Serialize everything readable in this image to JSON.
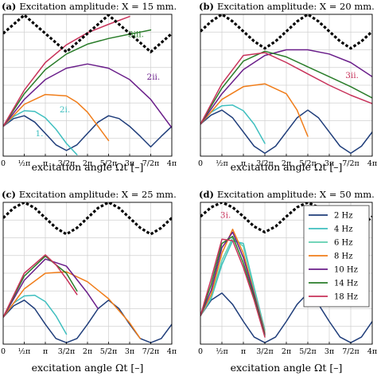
{
  "chart_data": [
    {
      "type": "line",
      "panel": "(a)",
      "title": "Excitation amplitude: X = 15 mm.",
      "xlabel": "excitation angle Ωt [–]",
      "xlim": [
        0,
        12.566
      ],
      "ylim": [
        -1.0,
        1.0
      ],
      "x_ticks": [
        "0",
        "½π",
        "π",
        "3/2π",
        "2π",
        "5/2π",
        "3π",
        "7/2π",
        "4π"
      ],
      "grid": true,
      "annotations": [
        {
          "text": "3iii.",
          "color": "#2a7d2a",
          "x": 9.3,
          "y": 0.68
        },
        {
          "text": "2ii.",
          "color": "#6a1e8a",
          "x": 10.7,
          "y": 0.08
        },
        {
          "text": "2i.",
          "color": "#3fbfbf",
          "x": 4.2,
          "y": -0.38
        },
        {
          "text": "1.",
          "color": "#3fbfbf",
          "x": 2.4,
          "y": -0.72
        }
      ],
      "series": [
        {
          "name": "2 Hz",
          "color": "#1f3d7a",
          "x": [
            0,
            0.785,
            1.571,
            2.356,
            3.142,
            3.927,
            4.712,
            5.498,
            6.283,
            7.069,
            7.854,
            8.639,
            9.425,
            10.21,
            10.996,
            11.781,
            12.566
          ],
          "y": [
            -0.58,
            -0.47,
            -0.43,
            -0.52,
            -0.68,
            -0.84,
            -0.92,
            -0.84,
            -0.68,
            -0.52,
            -0.43,
            -0.47,
            -0.58,
            -0.72,
            -0.87,
            -0.72,
            -0.58
          ]
        },
        {
          "name": "4 Hz",
          "color": "#3fbfbf",
          "x": [
            0,
            0.785,
            1.571,
            2.356,
            3.142,
            3.927,
            4.712,
            5.498
          ],
          "y": [
            -0.58,
            -0.44,
            -0.36,
            -0.37,
            -0.46,
            -0.62,
            -0.82,
            -0.98
          ]
        },
        {
          "name": "8 Hz",
          "color": "#f07d1a",
          "x": [
            0,
            1.571,
            3.142,
            4.712,
            5.498,
            6.283,
            7.069,
            7.854
          ],
          "y": [
            -0.58,
            -0.27,
            -0.13,
            -0.15,
            -0.24,
            -0.38,
            -0.58,
            -0.78
          ]
        },
        {
          "name": "10 Hz",
          "color": "#6a1e8a",
          "x": [
            0,
            1.571,
            3.142,
            4.712,
            6.283,
            7.854,
            9.425,
            10.996,
            12.566
          ],
          "y": [
            -0.58,
            -0.2,
            0.08,
            0.24,
            0.3,
            0.24,
            0.08,
            -0.2,
            -0.6
          ]
        },
        {
          "name": "14 Hz",
          "color": "#2a7d2a",
          "x": [
            0,
            1.571,
            3.142,
            4.712,
            6.283,
            7.854,
            9.425,
            10.21,
            10.996
          ],
          "y": [
            -0.58,
            -0.12,
            0.22,
            0.44,
            0.58,
            0.66,
            0.72,
            0.75,
            0.78
          ]
        },
        {
          "name": "18 Hz",
          "color": "#c8325a",
          "x": [
            0,
            1.571,
            3.142,
            4.712,
            6.283,
            7.854,
            9.425
          ],
          "y": [
            -0.58,
            -0.07,
            0.32,
            0.57,
            0.74,
            0.86,
            0.97
          ]
        },
        {
          "name": "",
          "color": "#000000",
          "dashed": true,
          "x": [
            0,
            0.785,
            1.571,
            2.356,
            3.142,
            3.927,
            4.712,
            5.498,
            6.283,
            7.069,
            7.854,
            8.639,
            9.425,
            10.21,
            10.996,
            11.781,
            12.566
          ],
          "y": [
            0.73,
            0.86,
            0.99,
            0.86,
            0.73,
            0.6,
            0.47,
            0.6,
            0.73,
            0.86,
            0.99,
            0.86,
            0.73,
            0.6,
            0.47,
            0.6,
            0.73
          ]
        }
      ]
    },
    {
      "type": "line",
      "panel": "(b)",
      "title": "Excitation amplitude: X = 20 mm.",
      "xlabel": "excitation angle Ωt [–]",
      "xlim": [
        0,
        12.566
      ],
      "ylim": [
        -1.0,
        1.0
      ],
      "x_ticks": [
        "0",
        "½π",
        "π",
        "3/2π",
        "2π",
        "5/2π",
        "3π",
        "7/2π",
        "4π"
      ],
      "grid": true,
      "annotations": [
        {
          "text": "3ii.",
          "color": "#c8325a",
          "x": 10.6,
          "y": 0.1
        }
      ],
      "series": [
        {
          "name": "2 Hz",
          "color": "#1f3d7a",
          "x": [
            0,
            0.785,
            1.571,
            2.356,
            3.142,
            3.927,
            4.712,
            5.498,
            6.283,
            7.069,
            7.854,
            8.639,
            9.425,
            10.21,
            10.996,
            11.781,
            12.566
          ],
          "y": [
            -0.55,
            -0.42,
            -0.35,
            -0.46,
            -0.66,
            -0.86,
            -0.96,
            -0.86,
            -0.66,
            -0.46,
            -0.35,
            -0.46,
            -0.66,
            -0.86,
            -0.96,
            -0.86,
            -0.66
          ]
        },
        {
          "name": "4 Hz",
          "color": "#3fbfbf",
          "x": [
            0,
            0.785,
            1.571,
            2.356,
            3.142,
            3.927,
            4.712
          ],
          "y": [
            -0.55,
            -0.38,
            -0.29,
            -0.28,
            -0.36,
            -0.55,
            -0.82
          ]
        },
        {
          "name": "8 Hz",
          "color": "#f07d1a",
          "x": [
            0,
            1.571,
            3.142,
            4.712,
            6.283,
            7.069,
            7.854
          ],
          "y": [
            -0.55,
            -0.2,
            -0.02,
            0.02,
            -0.12,
            -0.35,
            -0.72
          ]
        },
        {
          "name": "10 Hz",
          "color": "#6a1e8a",
          "x": [
            0,
            1.571,
            3.142,
            4.712,
            6.283,
            7.854,
            9.425,
            10.996,
            12.566
          ],
          "y": [
            -0.55,
            -0.12,
            0.22,
            0.42,
            0.5,
            0.5,
            0.44,
            0.32,
            0.12
          ]
        },
        {
          "name": "14 Hz",
          "color": "#2a7d2a",
          "x": [
            0,
            1.571,
            3.142,
            4.712,
            6.283,
            7.854,
            9.425,
            10.996,
            12.566
          ],
          "y": [
            -0.55,
            -0.04,
            0.34,
            0.48,
            0.4,
            0.26,
            0.12,
            -0.02,
            -0.18
          ]
        },
        {
          "name": "18 Hz",
          "color": "#c8325a",
          "x": [
            0,
            1.571,
            3.142,
            4.712,
            6.283,
            7.854,
            9.425,
            10.996,
            12.566
          ],
          "y": [
            -0.55,
            0.02,
            0.42,
            0.46,
            0.32,
            0.16,
            0.0,
            -0.14,
            -0.26
          ]
        },
        {
          "name": "",
          "color": "#000000",
          "dashed": true,
          "x": [
            0,
            0.785,
            1.571,
            2.356,
            3.142,
            3.927,
            4.712,
            5.498,
            6.283,
            7.069,
            7.854,
            8.639,
            9.425,
            10.21,
            10.996,
            11.781,
            12.566
          ],
          "y": [
            0.76,
            0.9,
            1.0,
            0.9,
            0.76,
            0.62,
            0.52,
            0.62,
            0.76,
            0.9,
            1.0,
            0.9,
            0.76,
            0.62,
            0.52,
            0.62,
            0.76
          ]
        }
      ]
    },
    {
      "type": "line",
      "panel": "(c)",
      "title": "Excitation amplitude: X = 25 mm.",
      "xlabel": "excitation angle Ωt [–]",
      "xlim": [
        0,
        12.566
      ],
      "ylim": [
        -1.0,
        1.0
      ],
      "x_ticks": [
        "0",
        "½π",
        "π",
        "3/2π",
        "2π",
        "5/2π",
        "3π",
        "7/2π",
        "4π"
      ],
      "grid": true,
      "series": [
        {
          "name": "2 Hz",
          "color": "#1f3d7a",
          "x": [
            0,
            0.785,
            1.571,
            2.356,
            3.142,
            3.927,
            4.712,
            5.498,
            6.283,
            7.069,
            7.854,
            8.639,
            9.425,
            10.21,
            10.996,
            11.781,
            12.566
          ],
          "y": [
            -0.62,
            -0.46,
            -0.38,
            -0.5,
            -0.72,
            -0.92,
            -0.98,
            -0.92,
            -0.72,
            -0.5,
            -0.38,
            -0.5,
            -0.72,
            -0.92,
            -0.98,
            -0.92,
            -0.72
          ]
        },
        {
          "name": "4 Hz",
          "color": "#3fbfbf",
          "x": [
            0,
            0.785,
            1.571,
            2.356,
            3.142,
            3.927,
            4.712
          ],
          "y": [
            -0.62,
            -0.42,
            -0.32,
            -0.31,
            -0.4,
            -0.6,
            -0.86
          ]
        },
        {
          "name": "8 Hz",
          "color": "#f07d1a",
          "x": [
            0,
            1.571,
            3.142,
            4.712,
            6.283,
            7.854,
            9.425,
            10.21
          ],
          "y": [
            -0.62,
            -0.22,
            0.0,
            0.02,
            -0.12,
            -0.36,
            -0.7,
            -0.92
          ]
        },
        {
          "name": "10 Hz",
          "color": "#6a1e8a",
          "x": [
            0,
            1.571,
            3.142,
            4.712,
            6.283,
            7.069
          ],
          "y": [
            -0.62,
            -0.1,
            0.2,
            0.1,
            -0.28,
            -0.5
          ]
        },
        {
          "name": "14 Hz",
          "color": "#2a7d2a",
          "x": [
            0,
            1.571,
            3.142,
            4.712,
            5.498
          ],
          "y": [
            -0.62,
            -0.04,
            0.24,
            0.0,
            -0.25
          ]
        },
        {
          "name": "18 Hz",
          "color": "#c8325a",
          "x": [
            0,
            1.571,
            3.142,
            3.927,
            4.712,
            5.498
          ],
          "y": [
            -0.62,
            0.0,
            0.26,
            0.12,
            -0.08,
            -0.3
          ]
        },
        {
          "name": "",
          "color": "#000000",
          "dashed": true,
          "x": [
            0,
            0.785,
            1.571,
            2.356,
            3.142,
            3.927,
            4.712,
            5.498,
            6.283,
            7.069,
            7.854,
            8.639,
            9.425,
            10.21,
            10.996,
            11.781,
            12.566
          ],
          "y": [
            0.78,
            0.92,
            1.0,
            0.92,
            0.78,
            0.64,
            0.55,
            0.64,
            0.78,
            0.92,
            1.0,
            0.92,
            0.78,
            0.64,
            0.55,
            0.64,
            0.78
          ]
        }
      ]
    },
    {
      "type": "line",
      "panel": "(d)",
      "title": "Excitation amplitude: X = 50 mm.",
      "xlabel": "excitation angle Ωt [–]",
      "xlim": [
        0,
        12.566
      ],
      "ylim": [
        -1.0,
        1.0
      ],
      "x_ticks": [
        "0",
        "½π",
        "π",
        "3/2π",
        "2π",
        "5/2π",
        "3π",
        "7/2π",
        "4π"
      ],
      "grid": true,
      "legend": "top-right",
      "annotations": [
        {
          "text": "3i.",
          "color": "#c8325a",
          "x": 1.45,
          "y": 0.78
        }
      ],
      "series": [
        {
          "name": "2 Hz",
          "color": "#1f3d7a",
          "x": [
            0,
            0.785,
            1.571,
            2.356,
            3.142,
            3.927,
            4.712,
            5.498,
            6.283,
            7.069,
            7.854,
            8.639,
            9.425,
            10.21,
            10.996,
            11.781,
            12.566
          ],
          "y": [
            -0.6,
            -0.38,
            -0.28,
            -0.44,
            -0.68,
            -0.9,
            -0.98,
            -0.9,
            -0.68,
            -0.44,
            -0.28,
            -0.44,
            -0.68,
            -0.9,
            -0.98,
            -0.9,
            -0.68
          ]
        },
        {
          "name": "4 Hz",
          "color": "#3fbfbf",
          "x": [
            0,
            0.785,
            1.571,
            2.356,
            3.142,
            3.927,
            4.712
          ],
          "y": [
            -0.6,
            -0.36,
            0.12,
            0.46,
            0.42,
            -0.2,
            -0.8
          ]
        },
        {
          "name": "6 Hz",
          "color": "#5fcfaf",
          "x": [
            0,
            0.785,
            1.571,
            2.356,
            3.142,
            3.927,
            4.712
          ],
          "y": [
            -0.6,
            -0.34,
            0.18,
            0.5,
            0.38,
            -0.24,
            -0.82
          ]
        },
        {
          "name": "8 Hz",
          "color": "#f07d1a",
          "x": [
            0,
            0.785,
            1.571,
            2.356,
            3.142,
            3.927,
            4.712
          ],
          "y": [
            -0.6,
            -0.3,
            0.28,
            0.62,
            0.28,
            -0.28,
            -0.84
          ]
        },
        {
          "name": "10 Hz",
          "color": "#6a1e8a",
          "x": [
            0,
            0.785,
            1.571,
            2.356,
            3.142,
            3.927,
            4.712
          ],
          "y": [
            -0.6,
            -0.24,
            0.36,
            0.58,
            0.22,
            -0.3,
            -0.86
          ]
        },
        {
          "name": "14 Hz",
          "color": "#2a7d2a",
          "x": [
            0,
            0.785,
            1.571,
            2.356,
            3.142,
            3.927,
            4.712
          ],
          "y": [
            -0.6,
            -0.16,
            0.42,
            0.52,
            0.14,
            -0.34,
            -0.88
          ]
        },
        {
          "name": "18 Hz",
          "color": "#c8325a",
          "x": [
            0,
            0.785,
            1.571,
            2.356,
            3.142,
            3.927,
            4.712
          ],
          "y": [
            -0.6,
            -0.08,
            0.48,
            0.46,
            0.08,
            -0.38,
            -0.9
          ]
        },
        {
          "name": "",
          "color": "#000000",
          "dashed": true,
          "x": [
            0,
            0.785,
            1.571,
            2.356,
            3.142,
            3.927,
            4.712,
            5.498,
            6.283,
            7.069,
            7.854,
            8.639,
            9.425,
            10.21,
            10.996,
            11.781,
            12.566
          ],
          "y": [
            0.8,
            0.93,
            1.0,
            0.93,
            0.8,
            0.66,
            0.58,
            0.66,
            0.8,
            0.93,
            1.0,
            0.93,
            0.8,
            0.66,
            0.58,
            0.66,
            0.8
          ]
        }
      ]
    }
  ]
}
